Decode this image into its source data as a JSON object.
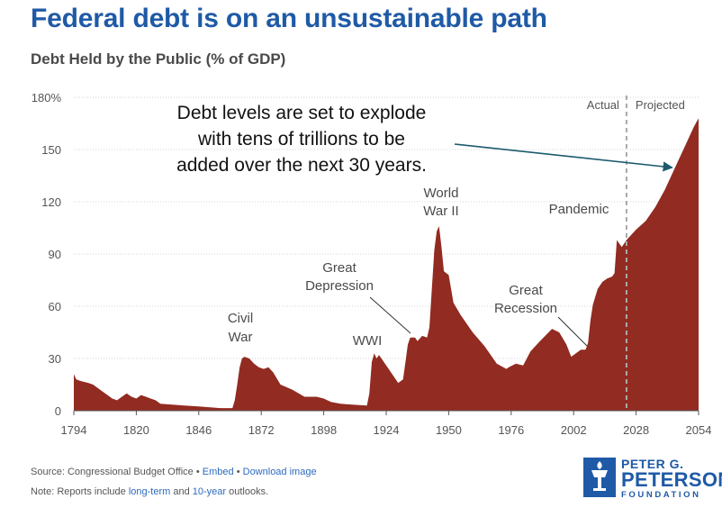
{
  "title": "Federal debt is on an unsustainable path",
  "subtitle": "Debt Held by the Public (% of GDP)",
  "chart_data": {
    "type": "area",
    "title": "Federal debt is on an unsustainable path",
    "ylabel": "Debt Held by the Public (% of GDP)",
    "ylim": [
      0,
      180
    ],
    "xlim": [
      1794,
      2054
    ],
    "y_ticks": [
      "180%",
      "150",
      "120",
      "90",
      "60",
      "30",
      "0"
    ],
    "y_tick_values": [
      180,
      150,
      120,
      90,
      60,
      30,
      0
    ],
    "x_ticks": [
      "1794",
      "1820",
      "1846",
      "1872",
      "1898",
      "1924",
      "1950",
      "1976",
      "2002",
      "2028",
      "2054"
    ],
    "x_tick_values": [
      1794,
      1820,
      1846,
      1872,
      1898,
      1924,
      1950,
      1976,
      2002,
      2028,
      2054
    ],
    "color": "#922b21",
    "divider_year": 2024,
    "phase_labels": {
      "actual": "Actual",
      "projected": "Projected"
    },
    "callout": [
      "Debt levels are set to explode",
      "with tens of trillions to be",
      "added over the next 30 years."
    ],
    "annotations": [
      {
        "lines": [
          "Civil",
          "War"
        ],
        "year": 1865
      },
      {
        "lines": [
          "WWI"
        ],
        "year": 1919
      },
      {
        "lines": [
          "Great",
          "Depression"
        ],
        "year": 1933
      },
      {
        "lines": [
          "World",
          "War II"
        ],
        "year": 1946
      },
      {
        "lines": [
          "Great",
          "Recession"
        ],
        "year": 2009
      },
      {
        "lines": [
          "Pandemic"
        ],
        "year": 2020
      }
    ],
    "series": [
      {
        "points": [
          [
            1794,
            21
          ],
          [
            1795,
            18
          ],
          [
            1797,
            17
          ],
          [
            1800,
            16
          ],
          [
            1802,
            15
          ],
          [
            1804,
            13
          ],
          [
            1806,
            11
          ],
          [
            1808,
            9
          ],
          [
            1810,
            7
          ],
          [
            1812,
            6
          ],
          [
            1814,
            8
          ],
          [
            1816,
            10
          ],
          [
            1818,
            8
          ],
          [
            1820,
            7
          ],
          [
            1822,
            9
          ],
          [
            1824,
            8
          ],
          [
            1826,
            7
          ],
          [
            1828,
            6
          ],
          [
            1830,
            4
          ],
          [
            1835,
            3.5
          ],
          [
            1840,
            3
          ],
          [
            1846,
            2.5
          ],
          [
            1855,
            1.5
          ],
          [
            1860,
            1.5
          ],
          [
            1861,
            6
          ],
          [
            1862,
            15
          ],
          [
            1863,
            25
          ],
          [
            1864,
            30
          ],
          [
            1865,
            31
          ],
          [
            1867,
            30
          ],
          [
            1869,
            27
          ],
          [
            1871,
            25
          ],
          [
            1873,
            24
          ],
          [
            1875,
            25
          ],
          [
            1877,
            22
          ],
          [
            1880,
            15
          ],
          [
            1885,
            12
          ],
          [
            1890,
            8
          ],
          [
            1895,
            8
          ],
          [
            1898,
            7
          ],
          [
            1901,
            5
          ],
          [
            1905,
            4
          ],
          [
            1910,
            3.5
          ],
          [
            1916,
            3
          ],
          [
            1917,
            10
          ],
          [
            1918,
            28
          ],
          [
            1919,
            33
          ],
          [
            1920,
            30
          ],
          [
            1921,
            32
          ],
          [
            1922,
            30
          ],
          [
            1925,
            24
          ],
          [
            1929,
            16
          ],
          [
            1931,
            18
          ],
          [
            1932,
            28
          ],
          [
            1933,
            38
          ],
          [
            1934,
            42
          ],
          [
            1936,
            42
          ],
          [
            1937,
            40
          ],
          [
            1939,
            43
          ],
          [
            1941,
            42
          ],
          [
            1942,
            48
          ],
          [
            1943,
            70
          ],
          [
            1944,
            92
          ],
          [
            1945,
            103
          ],
          [
            1946,
            106
          ],
          [
            1947,
            94
          ],
          [
            1948,
            80
          ],
          [
            1950,
            78
          ],
          [
            1952,
            62
          ],
          [
            1955,
            55
          ],
          [
            1960,
            45
          ],
          [
            1965,
            37
          ],
          [
            1970,
            27
          ],
          [
            1974,
            24
          ],
          [
            1975,
            25
          ],
          [
            1978,
            27
          ],
          [
            1981,
            26
          ],
          [
            1984,
            34
          ],
          [
            1988,
            40
          ],
          [
            1993,
            47
          ],
          [
            1996,
            45
          ],
          [
            1999,
            38
          ],
          [
            2001,
            31
          ],
          [
            2005,
            35
          ],
          [
            2007,
            35
          ],
          [
            2008,
            39
          ],
          [
            2009,
            52
          ],
          [
            2010,
            61
          ],
          [
            2012,
            70
          ],
          [
            2014,
            74
          ],
          [
            2016,
            76
          ],
          [
            2018,
            77
          ],
          [
            2019,
            79
          ],
          [
            2020,
            98
          ],
          [
            2021,
            96
          ],
          [
            2022,
            94
          ],
          [
            2023,
            96
          ],
          [
            2024,
            98
          ],
          [
            2028,
            104
          ],
          [
            2032,
            109
          ],
          [
            2036,
            117
          ],
          [
            2040,
            127
          ],
          [
            2044,
            139
          ],
          [
            2048,
            151
          ],
          [
            2052,
            163
          ],
          [
            2054,
            168
          ]
        ]
      }
    ]
  },
  "footer": {
    "source_label": "Source: Congressional Budget Office",
    "sep": "•",
    "embed": "Embed",
    "download": "Download image",
    "note_prefix": "Note: Reports include ",
    "note_link1": "long-term",
    "note_mid": " and ",
    "note_link2": "10-year",
    "note_suffix": " outlooks."
  },
  "logo": {
    "line1": "PETER G.",
    "line2": "PETERSON",
    "line3": "FOUNDATION"
  }
}
